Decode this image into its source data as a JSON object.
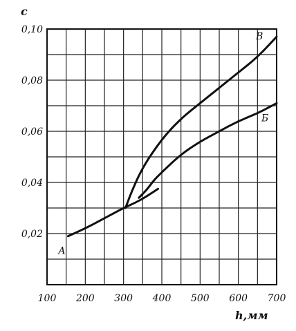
{
  "chart_data": {
    "type": "line",
    "title": "",
    "xlabel": "h,мм",
    "ylabel": "с",
    "xlim": [
      100,
      700
    ],
    "ylim": [
      0,
      0.1
    ],
    "x_ticks": [
      100,
      200,
      300,
      400,
      500,
      600,
      700
    ],
    "x_tick_labels": [
      "100",
      "200",
      "300",
      "400",
      "500",
      "600",
      "700"
    ],
    "y_ticks": [
      0.02,
      0.04,
      0.06,
      0.08,
      0.1
    ],
    "y_tick_labels": [
      "0,02",
      "0,04",
      "0,06",
      "0,08",
      "0,10"
    ],
    "grid": true,
    "series": [
      {
        "name": "A",
        "x": [
          155,
          200,
          250,
          300,
          330,
          360,
          390
        ],
        "y": [
          0.019,
          0.022,
          0.026,
          0.03,
          0.032,
          0.0345,
          0.0375
        ]
      },
      {
        "name": "В",
        "x": [
          305,
          320,
          350,
          400,
          450,
          500,
          550,
          600,
          650,
          700
        ],
        "y": [
          0.03,
          0.036,
          0.046,
          0.057,
          0.065,
          0.071,
          0.077,
          0.083,
          0.089,
          0.097
        ]
      },
      {
        "name": "Б",
        "x": [
          340,
          360,
          380,
          400,
          450,
          500,
          550,
          600,
          650,
          700
        ],
        "y": [
          0.034,
          0.037,
          0.041,
          0.044,
          0.051,
          0.056,
          0.06,
          0.064,
          0.067,
          0.071
        ]
      }
    ]
  }
}
